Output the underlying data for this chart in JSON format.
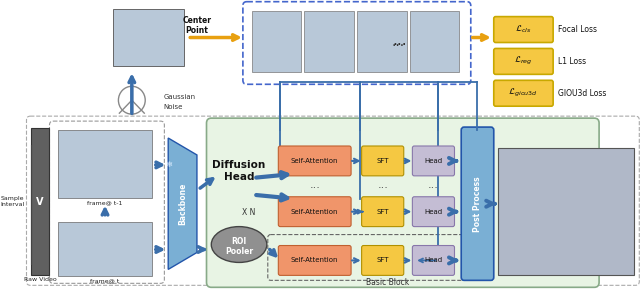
{
  "bg_color": "#ffffff",
  "fig_width": 6.4,
  "fig_height": 2.9,
  "colors": {
    "orange_sa": "#F0956A",
    "yellow_sft": "#F5C842",
    "lavender_head": "#C4BDD4",
    "blue_arrow": "#3A6EAA",
    "blue_post": "#7AAFD4",
    "green_bg": "#E8F4E4",
    "gray_video": "#707070",
    "roi_gray": "#909090",
    "backbone_blue": "#7AAFD4",
    "gold_loss": "#F5C842",
    "loss_border": "#C8A800",
    "dashed_blue": "#4466CC",
    "dashed_gray": "#888888",
    "text_dark": "#111111",
    "arrow_orange": "#E8A010",
    "arrow_blue": "#3A6EAA"
  },
  "loss_items": [
    {
      "text": "L_cls",
      "superscript": "",
      "label": "Focal Loss",
      "iy": 0.83
    },
    {
      "text": "L_reg",
      "superscript": "",
      "label": "L1 Loss",
      "iy": 0.65
    },
    {
      "text": "L_giou3d",
      "superscript": "",
      "label": "GIOU3d Loss",
      "iy": 0.47
    }
  ]
}
